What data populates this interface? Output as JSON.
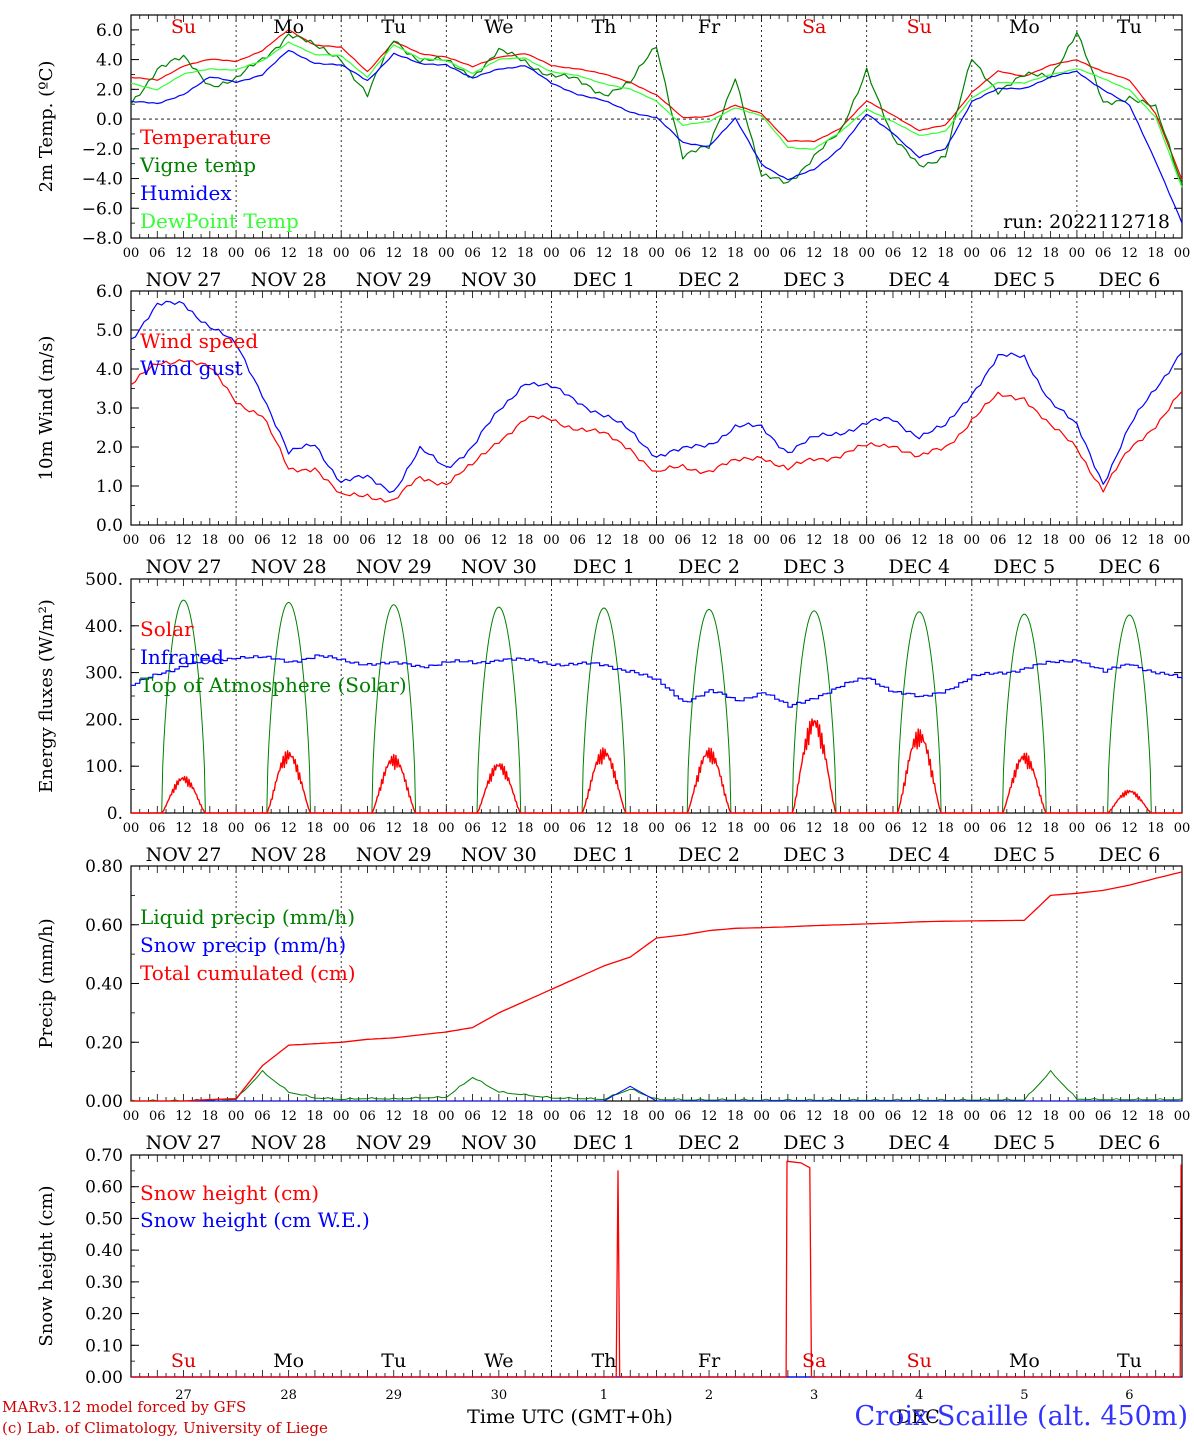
{
  "chart_data": [
    {
      "type": "line",
      "ylabel": "2m Temp. (ºC)",
      "ylim": [
        -8,
        7
      ],
      "yticks": [
        6,
        4,
        2,
        0,
        -2,
        -4,
        -6,
        -8
      ],
      "ytick_labels": [
        "6.0",
        "4.0",
        "2.0",
        "0.0",
        "−2.0",
        "−4.0",
        "−6.0",
        "−8.0"
      ],
      "x_hours": [
        0,
        6,
        12,
        18,
        24,
        30,
        36,
        42,
        48,
        54,
        60,
        66,
        72,
        78,
        84,
        90,
        96,
        102,
        108,
        114,
        120,
        126,
        132,
        138,
        144,
        150,
        156,
        162,
        168,
        174,
        180,
        186,
        192,
        198,
        204,
        210,
        216,
        222,
        228,
        234,
        240
      ],
      "weekdays": [
        "Su",
        "Mo",
        "Tu",
        "We",
        "Th",
        "Fr",
        "Sa",
        "Su",
        "Mo",
        "Tu"
      ],
      "weekday_colors": [
        "#e00000",
        "#000000",
        "#000000",
        "#000000",
        "#000000",
        "#000000",
        "#e00000",
        "#e00000",
        "#000000",
        "#000000"
      ],
      "annotation": "run: 2022112718",
      "series": [
        {
          "name": "Temperature",
          "color": "#ff0000",
          "values": [
            2.8,
            2.6,
            3.6,
            4.0,
            3.9,
            4.6,
            6.0,
            5.0,
            4.8,
            3.2,
            5.2,
            4.4,
            4.2,
            3.5,
            4.2,
            4.4,
            3.6,
            3.4,
            3.0,
            2.5,
            1.6,
            0.1,
            0.2,
            0.9,
            0.4,
            -1.5,
            -1.5,
            -0.6,
            1.2,
            0.3,
            -0.8,
            -0.4,
            1.8,
            3.2,
            2.9,
            3.6,
            4.0,
            3.2,
            2.6,
            0.4,
            -4.1
          ]
        },
        {
          "name": "Vigne temp",
          "color": "#008000",
          "values": [
            1.0,
            3.5,
            4.0,
            2.4,
            2.6,
            4.0,
            5.8,
            4.8,
            4.2,
            1.5,
            5.4,
            4.0,
            3.8,
            3.0,
            4.5,
            3.9,
            3.0,
            2.5,
            1.8,
            2.3,
            5.0,
            -2.5,
            -2.0,
            3.0,
            -4.0,
            -4.2,
            -2.5,
            -1.0,
            3.5,
            -1.5,
            -3.0,
            -2.5,
            4.0,
            2.0,
            2.8,
            3.0,
            5.8,
            1.0,
            1.6,
            0.6,
            -4.3
          ]
        },
        {
          "name": "Humidex",
          "color": "#0000ff",
          "values": [
            1.2,
            1.0,
            1.7,
            2.8,
            2.5,
            3.0,
            4.6,
            3.8,
            3.6,
            2.6,
            4.4,
            3.7,
            3.7,
            2.7,
            3.4,
            3.6,
            2.4,
            1.7,
            1.2,
            0.5,
            0.1,
            -1.6,
            -1.8,
            0.0,
            -3.0,
            -4.1,
            -3.4,
            -1.9,
            0.3,
            -0.9,
            -2.6,
            -2.0,
            1.2,
            2.0,
            2.1,
            2.8,
            3.2,
            2.0,
            0.9,
            -2.8,
            -7.0
          ]
        },
        {
          "name": "DewPoint Temp",
          "color": "#33ff33",
          "values": [
            2.4,
            2.0,
            3.0,
            3.4,
            3.3,
            3.9,
            5.2,
            4.3,
            4.3,
            2.8,
            5.0,
            4.1,
            3.9,
            3.1,
            4.0,
            4.1,
            3.2,
            2.9,
            2.4,
            2.0,
            1.2,
            -0.4,
            -0.2,
            0.8,
            0.2,
            -1.9,
            -2.0,
            -0.9,
            0.7,
            -0.2,
            -1.1,
            -0.8,
            1.4,
            2.5,
            2.4,
            3.0,
            3.4,
            2.7,
            2.0,
            0.1,
            -4.6
          ]
        }
      ]
    },
    {
      "type": "line",
      "ylabel": "10m Wind (m/s)",
      "ylim": [
        0,
        6
      ],
      "yticks": [
        6,
        5,
        4,
        3,
        2,
        1,
        0
      ],
      "ytick_labels": [
        "6.0",
        "5.0",
        "4.0",
        "3.0",
        "2.0",
        "1.0",
        "0.0"
      ],
      "hline": 5,
      "series": [
        {
          "name": "Wind speed",
          "color": "#ff0000",
          "values": [
            3.6,
            4.1,
            4.3,
            4.0,
            3.2,
            2.8,
            1.4,
            1.5,
            0.7,
            0.8,
            0.6,
            1.2,
            1.1,
            1.5,
            2.2,
            2.7,
            2.7,
            2.5,
            2.3,
            2.0,
            1.3,
            1.5,
            1.4,
            1.6,
            1.8,
            1.4,
            1.7,
            1.8,
            2.0,
            2.1,
            1.7,
            2.0,
            2.7,
            3.3,
            3.3,
            2.5,
            2.0,
            0.9,
            1.9,
            2.6,
            3.4
          ]
        },
        {
          "name": "Wind gust",
          "color": "#0000ff",
          "values": [
            4.8,
            5.6,
            5.7,
            5.1,
            4.6,
            3.4,
            1.8,
            2.1,
            1.1,
            1.2,
            0.9,
            1.9,
            1.5,
            2.0,
            2.9,
            3.7,
            3.5,
            3.2,
            2.8,
            2.4,
            1.8,
            1.9,
            2.1,
            2.5,
            2.5,
            1.9,
            2.2,
            2.4,
            2.6,
            2.7,
            2.3,
            2.5,
            3.4,
            4.3,
            4.3,
            3.2,
            2.5,
            1.1,
            2.5,
            3.5,
            4.5
          ]
        }
      ]
    },
    {
      "type": "line",
      "ylabel": "Energy fluxes (W/m²)",
      "ylim": [
        0,
        500
      ],
      "yticks": [
        500,
        400,
        300,
        200,
        100,
        0
      ],
      "ytick_labels": [
        "500.",
        "400.",
        "300.",
        "200.",
        "100.",
        "0."
      ],
      "solar_peaks": [
        80,
        135,
        125,
        110,
        140,
        140,
        210,
        180,
        130,
        50
      ],
      "toa_peaks": [
        455,
        450,
        445,
        440,
        438,
        435,
        432,
        430,
        425,
        423
      ],
      "infrared_values": [
        270,
        300,
        315,
        325,
        335,
        330,
        325,
        335,
        325,
        320,
        318,
        315,
        322,
        320,
        330,
        325,
        320,
        318,
        315,
        305,
        280,
        240,
        260,
        240,
        260,
        225,
        250,
        270,
        290,
        260,
        245,
        265,
        290,
        300,
        310,
        320,
        330,
        300,
        320,
        300,
        285
      ],
      "series": [
        {
          "name": "Solar",
          "color": "#ff0000"
        },
        {
          "name": "Infrared",
          "color": "#0000ff"
        },
        {
          "name": "Top of Atmosphere (Solar)",
          "color": "#008000"
        }
      ]
    },
    {
      "type": "line",
      "ylabel": "Precip (mm/h)",
      "ylim": [
        0,
        0.8
      ],
      "yticks": [
        0.8,
        0.6,
        0.4,
        0.2,
        0.0
      ],
      "ytick_labels": [
        "0.80",
        "0.60",
        "0.40",
        "0.20",
        "0.00"
      ],
      "series": [
        {
          "name": "Liquid precip (mm/h)",
          "color": "#008000",
          "values": [
            0,
            0,
            0,
            0.003,
            0.005,
            0.1,
            0.03,
            0.01,
            0.005,
            0.008,
            0.006,
            0.01,
            0.012,
            0.08,
            0.03,
            0.02,
            0.01,
            0.008,
            0.005,
            0.04,
            0.005,
            0.003,
            0.003,
            0.003,
            0.002,
            0.002,
            0.002,
            0.002,
            0.002,
            0.002,
            0.002,
            0.002,
            0.003,
            0.003,
            0.003,
            0.1,
            0.006,
            0.004,
            0.004,
            0.004,
            0.004
          ]
        },
        {
          "name": "Snow precip (mm/h)",
          "color": "#0000ff",
          "values": [
            0,
            0,
            0,
            0,
            0,
            0,
            0,
            0,
            0,
            0,
            0,
            0,
            0,
            0,
            0,
            0,
            0,
            0,
            0,
            0.05,
            0,
            0,
            0,
            0,
            0,
            0,
            0,
            0,
            0,
            0,
            0,
            0,
            0,
            0,
            0,
            0,
            0,
            0,
            0,
            0,
            0
          ]
        },
        {
          "name": "Total cumulated (cm)",
          "color": "#ff0000",
          "values": [
            0,
            0,
            0,
            0.005,
            0.008,
            0.12,
            0.19,
            0.195,
            0.2,
            0.21,
            0.215,
            0.225,
            0.235,
            0.25,
            0.3,
            0.34,
            0.38,
            0.42,
            0.46,
            0.49,
            0.555,
            0.565,
            0.58,
            0.588,
            0.59,
            0.593,
            0.597,
            0.6,
            0.603,
            0.606,
            0.61,
            0.612,
            0.613,
            0.614,
            0.615,
            0.7,
            0.707,
            0.717,
            0.735,
            0.758,
            0.78
          ]
        }
      ]
    },
    {
      "type": "line",
      "ylabel": "Snow height (cm)",
      "ylim": [
        0,
        0.7
      ],
      "yticks": [
        0.7,
        0.6,
        0.5,
        0.4,
        0.3,
        0.2,
        0.1,
        0.0
      ],
      "ytick_labels": [
        "0.70",
        "0.60",
        "0.50",
        "0.40",
        "0.30",
        "0.20",
        "0.10",
        "0.00"
      ],
      "day_numbers": [
        "27",
        "28",
        "29",
        "30",
        "1",
        "2",
        "3",
        "4",
        "5",
        "6"
      ],
      "xlabel": "Time UTC (GMT+0h)",
      "xlabel2": "DEC",
      "series": [
        {
          "name": "Snow height (cm)",
          "color": "#ff0000",
          "points": [
            [
              0,
              0
            ],
            [
              110.8,
              0
            ],
            [
              111.2,
              0.65
            ],
            [
              111.6,
              0
            ],
            [
              149.6,
              0
            ],
            [
              149.8,
              0.68
            ],
            [
              153,
              0.675
            ],
            [
              155,
              0.66
            ],
            [
              155.4,
              0
            ],
            [
              239.6,
              0
            ],
            [
              239.8,
              0.67
            ]
          ]
        },
        {
          "name": "Snow height (cm W.E.)",
          "color": "#0000ff",
          "points": [
            [
              0,
              0
            ],
            [
              240,
              0
            ]
          ]
        }
      ]
    }
  ],
  "x_axis": {
    "hour_labels": [
      "00",
      "06",
      "12",
      "18"
    ],
    "end_label": "00",
    "dates": [
      "NOV 27",
      "NOV 28",
      "NOV 29",
      "NOV 30",
      "DEC  1",
      "DEC  2",
      "DEC  3",
      "DEC  4",
      "DEC  5",
      "DEC  6"
    ]
  },
  "footer": {
    "credit_line1": "MARv3.12 model forced by GFS",
    "credit_line2": "(c) Lab. of Climatology, University of Liege",
    "station": "Croix-Scaille (alt. 450m)"
  },
  "colors": {
    "temperature": "#ff0000",
    "vigne": "#008000",
    "humidex": "#0000ff",
    "dewpoint": "#33ff33",
    "credit": "#d00000",
    "station": "#3333ff"
  }
}
